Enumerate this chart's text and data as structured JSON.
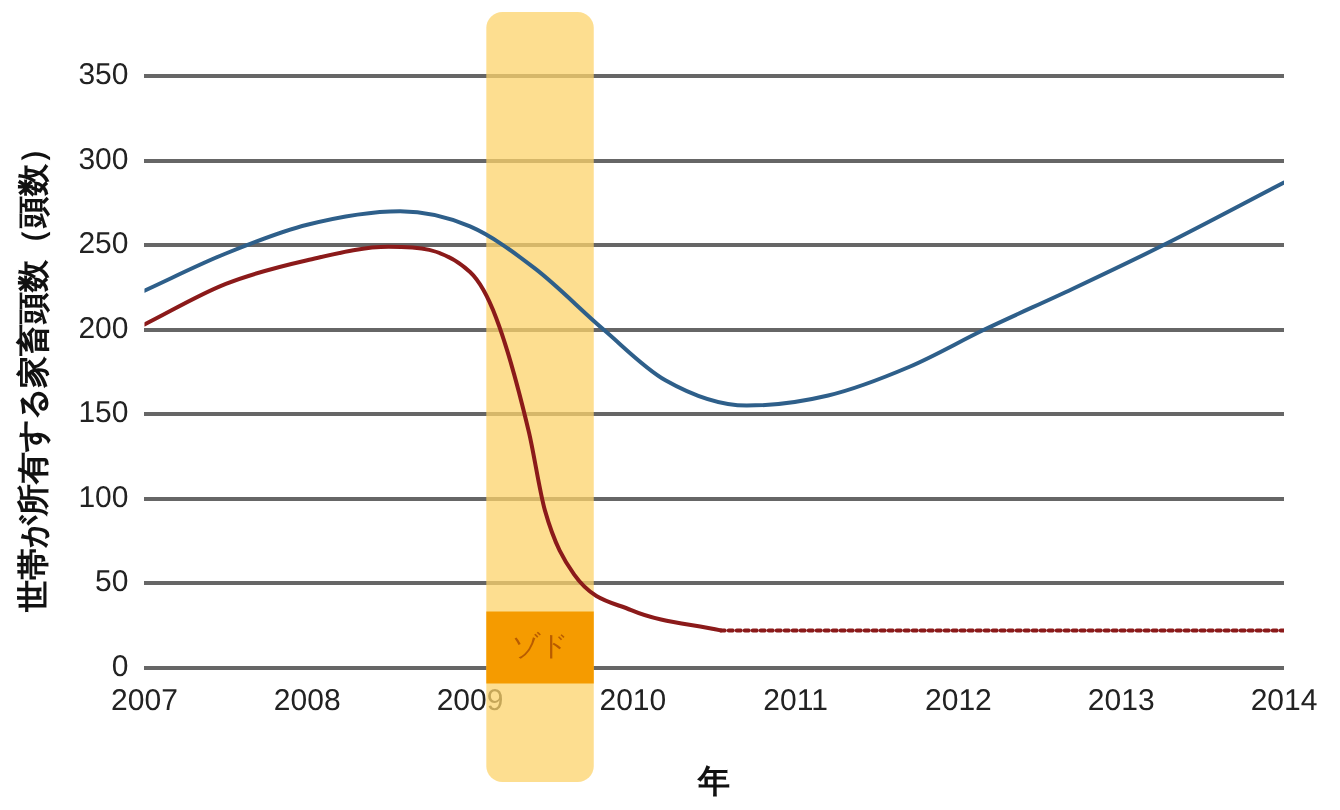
{
  "chart_data": {
    "type": "line",
    "xlabel": "年",
    "ylabel": "世帯が所有する家畜頭数（頭数）",
    "xlim": [
      2007,
      2014
    ],
    "xticks": [
      2007,
      2008,
      2009,
      2010,
      2011,
      2012,
      2013,
      2014
    ],
    "ylim": [
      0,
      350
    ],
    "yticks": [
      0,
      50,
      100,
      150,
      200,
      250,
      300,
      350
    ],
    "grid": "y",
    "legend": false,
    "marker": "none",
    "bands": [
      {
        "axis": "x",
        "from": 2009.1,
        "to": 2009.76,
        "label": "ゾド",
        "color": "#fcd36b"
      }
    ],
    "series": [
      {
        "color": "#2e5f8a",
        "line_style": "solid",
        "x": [
          2007,
          2007.5,
          2008,
          2008.57,
          2009,
          2009.4,
          2009.82,
          2010.2,
          2010.7,
          2011.2,
          2011.7,
          2012.16,
          2012.7,
          2013.26,
          2014
        ],
        "values": [
          223,
          245,
          262,
          270,
          261,
          236,
          200,
          170,
          155,
          161,
          178,
          200,
          224,
          250,
          287
        ]
      },
      {
        "color": "#8b1a1a",
        "line_style": "solid",
        "x": [
          2007,
          2007.5,
          2008,
          2008.5,
          2009,
          2009.16,
          2009.36,
          2009.46,
          2009.64,
          2009.99,
          2010.54
        ],
        "values": [
          203,
          227,
          241,
          249,
          234,
          207,
          140,
          93,
          55,
          34,
          22
        ]
      },
      {
        "color": "#8b1a1a",
        "line_style": "dotted",
        "x": [
          2010.54,
          2014
        ],
        "values": [
          22,
          22
        ]
      }
    ]
  }
}
